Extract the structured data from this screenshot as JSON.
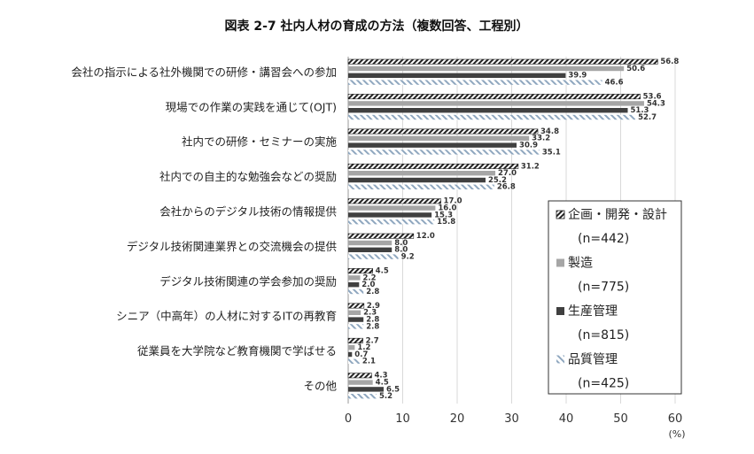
{
  "chart_data": {
    "type": "bar",
    "orientation": "horizontal",
    "title": "図表 2-7 社内人材の育成の方法（複数回答、工程別）",
    "xlabel": "",
    "unit": "(%)",
    "xlim": [
      0,
      60
    ],
    "xticks": [
      "0",
      "10",
      "20",
      "30",
      "40",
      "50",
      "60"
    ],
    "grid": "vertical",
    "legend_position": "right",
    "categories": [
      "会社の指示による社外機関での研修・講習会への参加",
      "現場での作業の実践を通じて(OJT)",
      "社内での研修・セミナーの実施",
      "社内での自主的な勉強会などの奨励",
      "会社からのデジタル技術の情報提供",
      "デジタル技術関連業界との交流機会の提供",
      "デジタル技術関連の学会参加の奨励",
      "シニア（中高年）の人材に対するITの再教育",
      "従業員を大学院など教育機関で学ばせる",
      "その他"
    ],
    "series": [
      {
        "name": "企画・開発・設計",
        "n_label": "(n=442)",
        "pattern": "diagonal-dense",
        "color": "#333333",
        "values": [
          56.8,
          53.6,
          34.8,
          31.2,
          17.0,
          12.0,
          4.5,
          2.9,
          2.7,
          4.3
        ],
        "labels": [
          "56.8",
          "53.6",
          "34.8",
          "31.2",
          "17.0",
          "12.0",
          "4.5",
          "2.9",
          "2.7",
          "4.3"
        ]
      },
      {
        "name": "製造",
        "n_label": "(n=775)",
        "pattern": "solid",
        "color": "#a6a6a6",
        "values": [
          50.6,
          54.3,
          33.2,
          27.0,
          16.0,
          8.0,
          2.2,
          2.3,
          1.2,
          4.5
        ],
        "labels": [
          "50.6",
          "54.3",
          "33.2",
          "27.0",
          "16.0",
          "8.0",
          "2.2",
          "2.3",
          "1.2",
          "4.5"
        ]
      },
      {
        "name": "生産管理",
        "n_label": "(n=815)",
        "pattern": "solid",
        "color": "#404040",
        "values": [
          39.9,
          51.3,
          30.9,
          25.2,
          15.3,
          8.0,
          2.0,
          2.8,
          0.7,
          6.5
        ],
        "labels": [
          "39.9",
          "51.3",
          "30.9",
          "25.2",
          "15.3",
          "8.0",
          "2.0",
          "2.8",
          "0.7",
          "6.5"
        ]
      },
      {
        "name": "品質管理",
        "n_label": "(n=425)",
        "pattern": "diagonal-light",
        "color": "#9fb3c8",
        "values": [
          46.6,
          52.7,
          35.1,
          26.8,
          15.8,
          9.2,
          2.8,
          2.8,
          2.1,
          5.2
        ],
        "labels": [
          "46.6",
          "52.7",
          "35.1",
          "26.8",
          "15.8",
          "9.2",
          "2.8",
          "2.8",
          "2.1",
          "5.2"
        ]
      }
    ]
  }
}
